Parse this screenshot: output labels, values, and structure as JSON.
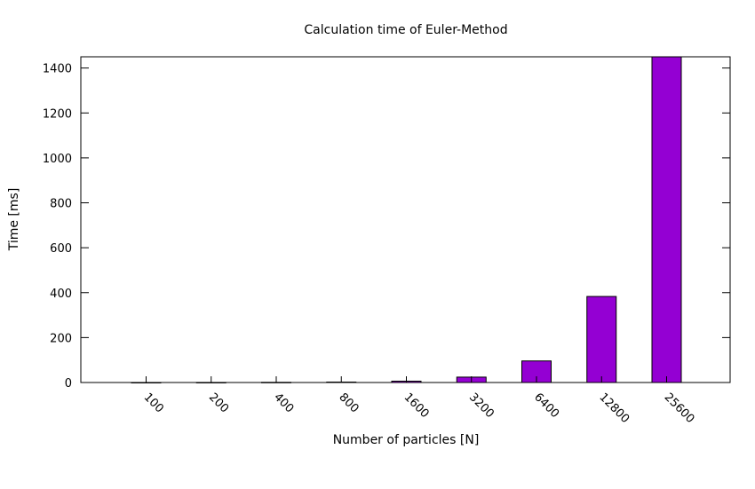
{
  "chart_data": {
    "type": "bar",
    "title": "Calculation time of Euler-Method",
    "xlabel": "Number of particles [N]",
    "ylabel": "Time [ms]",
    "categories": [
      "100",
      "200",
      "400",
      "800",
      "1600",
      "3200",
      "6400",
      "12800",
      "25600"
    ],
    "values": [
      0.1,
      0.3,
      0.8,
      2,
      6,
      24,
      96,
      383,
      1450
    ],
    "ylim": [
      0,
      1450
    ],
    "yticks": [
      0,
      200,
      400,
      600,
      800,
      1000,
      1200,
      1400
    ],
    "grid": false,
    "legend": "none",
    "bar_color": "#9400d3",
    "bar_stroke": "#000000"
  }
}
